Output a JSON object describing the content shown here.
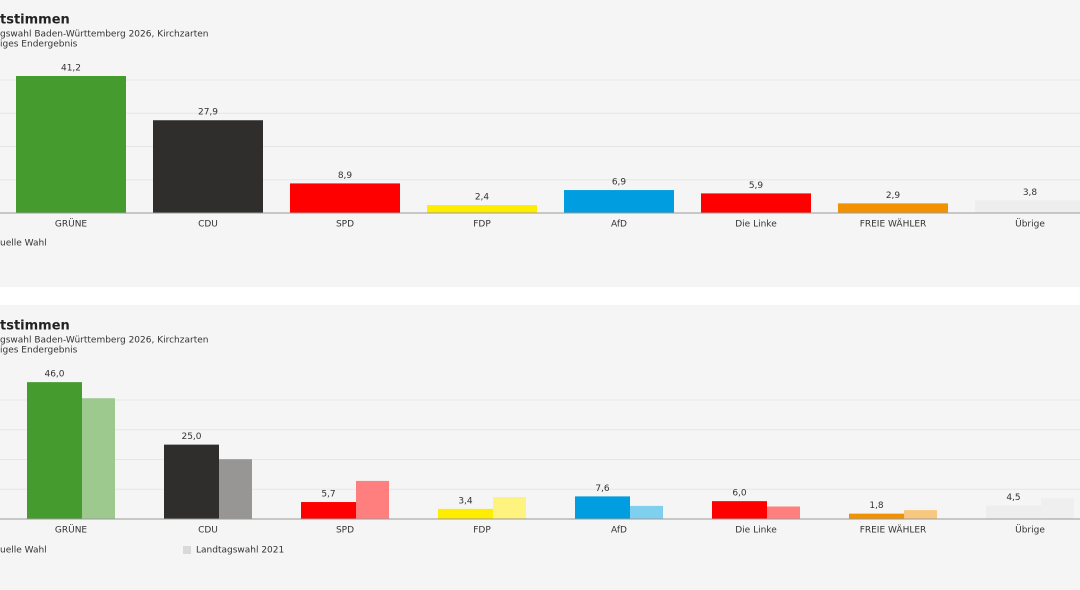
{
  "chart_data": [
    {
      "type": "bar",
      "title": "tstimmen",
      "subtitle": [
        "gswahl Baden-Württemberg 2026, Kirchzarten",
        "iges Endergebnis"
      ],
      "categories": [
        "GRÜNE",
        "CDU",
        "SPD",
        "FDP",
        "AfD",
        "Die Linke",
        "FREIE WÄHLER",
        "Übrige"
      ],
      "series": [
        {
          "name": "uelle Wahl",
          "colors": [
            "#459b2d",
            "#302e2c",
            "#ff0000",
            "#ffed00",
            "#009ee0",
            "#ff0000",
            "#f39200",
            "#eeeeee"
          ],
          "values": [
            41.2,
            27.9,
            8.9,
            2.4,
            6.9,
            5.9,
            2.9,
            3.8
          ],
          "value_labels": [
            "41,2",
            "27,9",
            "8,9",
            "2,4",
            "6,9",
            "5,9",
            "2,9",
            "3,8"
          ]
        }
      ],
      "ylim": [
        0,
        40
      ],
      "yticks": [
        0,
        10,
        20,
        30,
        40
      ],
      "grid": true
    },
    {
      "type": "grouped-bar",
      "title": "tstimmen",
      "subtitle": [
        "gswahl Baden-Württemberg 2026, Kirchzarten",
        "iges Endergebnis"
      ],
      "categories": [
        "GRÜNE",
        "CDU",
        "SPD",
        "FDP",
        "AfD",
        "Die Linke",
        "FREIE WÄHLER",
        "Übrige"
      ],
      "series": [
        {
          "name": "uelle Wahl",
          "colors": [
            "#459b2d",
            "#302e2c",
            "#ff0000",
            "#ffed00",
            "#009ee0",
            "#ff0000",
            "#f39200",
            "#eeeeee"
          ],
          "values": [
            46.0,
            25.0,
            5.7,
            3.4,
            7.6,
            6.0,
            1.8,
            4.5
          ],
          "value_labels": [
            "46,0",
            "25,0",
            "5,7",
            "3,4",
            "7,6",
            "6,0",
            "1,8",
            "4,5"
          ]
        },
        {
          "name": "Landtagswahl 2021",
          "color": "#d9d9d9",
          "colors": [
            "#9dc98f",
            "#979695",
            "#ff7f7f",
            "#fff380",
            "#7fcfef",
            "#ff7f7f",
            "#f9c880",
            "#efefef"
          ],
          "values": [
            40.6,
            20.1,
            12.8,
            7.4,
            4.4,
            4.2,
            3.0,
            7.0
          ]
        }
      ],
      "ylim": [
        0,
        40
      ],
      "yticks": [
        0,
        10,
        20,
        30,
        40
      ],
      "grid": true
    }
  ]
}
